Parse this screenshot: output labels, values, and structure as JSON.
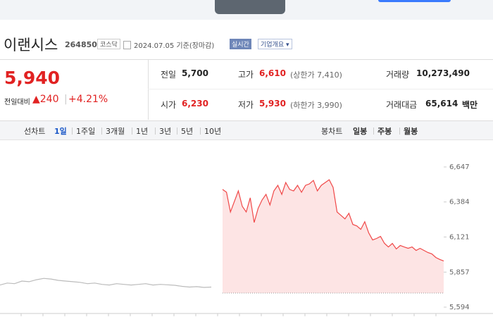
{
  "header": {
    "name": "이랜시스",
    "code": "264850",
    "market": "코스닥",
    "date": "2024.07.05 기준(장마감)",
    "realtime": "실시간",
    "company_info": "기업개요"
  },
  "quote": {
    "price": "5,940",
    "change_label": "전일대비",
    "change": "▲240",
    "change_pct": "+4.21%"
  },
  "stats": [
    {
      "label": "전일",
      "value": "5,700"
    },
    {
      "label": "고가",
      "value": "6,610",
      "extra": "(상한가 7,410)"
    },
    {
      "label": "거래량",
      "value": "10,273,490"
    },
    {
      "label": "시가",
      "value": "6,230"
    },
    {
      "label": "저가",
      "value": "5,930",
      "extra": "(하한가 3,990)"
    },
    {
      "label": "거래대금",
      "value": "65,614",
      "unit": "백만"
    }
  ],
  "tabs": {
    "line_chart": "선차트",
    "periods": [
      "1일",
      "1주일",
      "3개월",
      "1년",
      "3년",
      "5년",
      "10년"
    ],
    "candle_chart": "봉차트",
    "candles": [
      "일봉",
      "주봉",
      "월봉"
    ]
  },
  "chart_data": {
    "type": "line",
    "ylim": [
      5594,
      6647
    ],
    "yticks": [
      {
        "value": 6647,
        "label": "6,647"
      },
      {
        "value": 6384,
        "label": "6,384"
      },
      {
        "value": 6121,
        "label": "6,121"
      },
      {
        "value": 5857,
        "label": "5,857"
      },
      {
        "value": 5594,
        "label": "5,594"
      }
    ],
    "reference": 5700,
    "series": [
      {
        "color": "#bbbbbb",
        "values": [
          5760,
          5775,
          5770,
          5790,
          5785,
          5800,
          5810,
          5805,
          5795,
          5790,
          5785,
          5780,
          5770,
          5775,
          5765,
          5760,
          5770,
          5765,
          5760,
          5765,
          5770,
          5760,
          5765,
          5762,
          5758,
          5750,
          5745,
          5748,
          5742,
          5745
        ]
      },
      {
        "color": "#f04848",
        "values": [
          6478,
          6457,
          6309,
          6388,
          6467,
          6351,
          6309,
          6415,
          6230,
          6336,
          6399,
          6441,
          6362,
          6467,
          6509,
          6441,
          6530,
          6478,
          6467,
          6509,
          6457,
          6509,
          6520,
          6546,
          6467,
          6509,
          6530,
          6551,
          6493,
          6309,
          6283,
          6257,
          6299,
          6215,
          6204,
          6178,
          6236,
          6152,
          6099,
          6110,
          6125,
          6073,
          6046,
          6073,
          6031,
          6057,
          6046,
          6036,
          6046,
          6020,
          6036,
          6020,
          6004,
          5994,
          5967,
          5952,
          5941
        ]
      }
    ]
  }
}
